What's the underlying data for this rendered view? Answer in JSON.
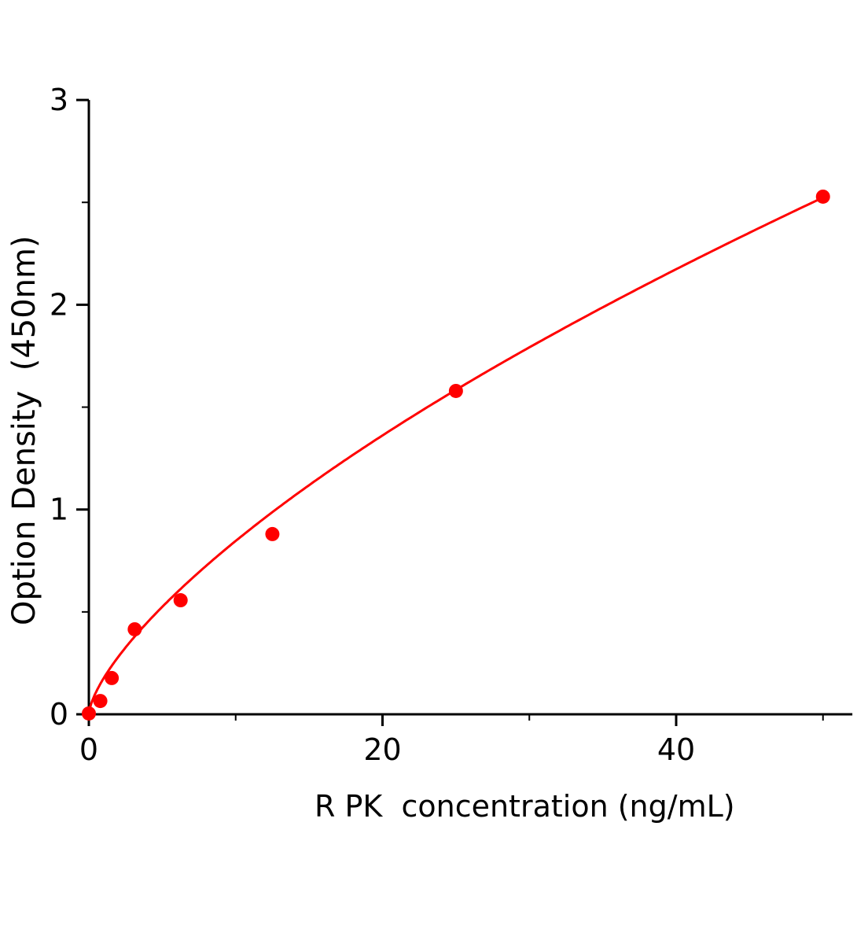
{
  "chart_data": {
    "type": "scatter",
    "title": "",
    "xlabel": "R PK  concentration (ng/mL)",
    "ylabel": "Option Density  (450nm)",
    "xlim": [
      0,
      52
    ],
    "ylim": [
      0,
      3
    ],
    "x_ticks": [
      0,
      20,
      40
    ],
    "x_tick_labels": [
      "0",
      "20",
      "40"
    ],
    "x_minor_ticks": [
      10,
      30,
      50
    ],
    "y_ticks": [
      0,
      1,
      2,
      3
    ],
    "y_tick_labels": [
      "0",
      "1",
      "2",
      "3"
    ],
    "y_minor_ticks": [
      0.5,
      1.5,
      2.5
    ],
    "grid": false,
    "color": "#ff0000",
    "series": [
      {
        "points": [
          {
            "x": 0,
            "y": 0.004
          },
          {
            "x": 0.78,
            "y": 0.065
          },
          {
            "x": 1.56,
            "y": 0.177
          },
          {
            "x": 3.125,
            "y": 0.415
          },
          {
            "x": 6.25,
            "y": 0.557
          },
          {
            "x": 12.5,
            "y": 0.88
          },
          {
            "x": 25,
            "y": 1.579
          },
          {
            "x": 50,
            "y": 2.528
          }
        ],
        "fit": "curve"
      }
    ]
  }
}
